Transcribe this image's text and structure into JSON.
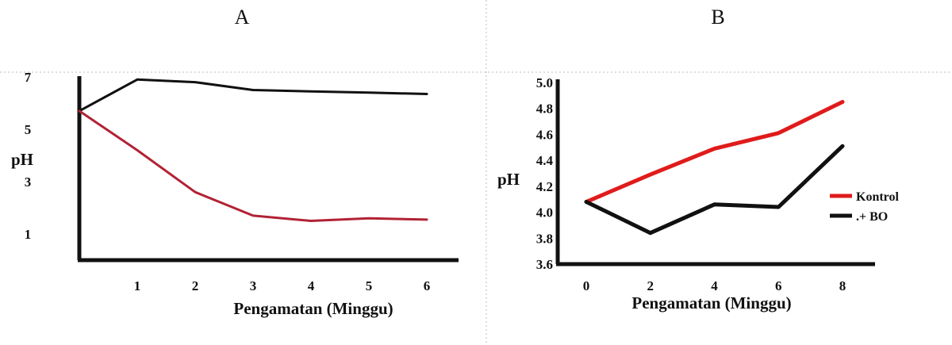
{
  "chart_data": [
    {
      "type": "line",
      "panel_label": "A",
      "title": "",
      "xlabel": "Pengamatan (Minggu)",
      "ylabel": "pH",
      "x_ticks": [
        1,
        2,
        3,
        4,
        5,
        6
      ],
      "y_ticks": [
        1,
        3,
        5,
        7
      ],
      "xlim": [
        0,
        6.5
      ],
      "ylim": [
        0,
        7
      ],
      "grid": false,
      "series": [
        {
          "name": "",
          "color": "#111111",
          "x": [
            0,
            1,
            2,
            3,
            4,
            5,
            6
          ],
          "y": [
            5.7,
            6.9,
            6.8,
            6.5,
            6.45,
            6.4,
            6.35
          ]
        },
        {
          "name": "",
          "color": "#b22234",
          "x": [
            0,
            1,
            2,
            3,
            4,
            5,
            6
          ],
          "y": [
            5.7,
            4.2,
            2.6,
            1.7,
            1.5,
            1.6,
            1.55
          ]
        }
      ]
    },
    {
      "type": "line",
      "panel_label": "B",
      "title": "",
      "xlabel": "Pengamatan (Minggu)",
      "ylabel": "pH",
      "x_ticks": [
        0,
        2,
        4,
        6,
        8
      ],
      "y_ticks": [
        "3.6",
        "3.8",
        "4.0",
        "4.2",
        "4.4",
        "4.6",
        "4.8",
        "5.0"
      ],
      "xlim": [
        -1.5,
        8.8
      ],
      "ylim": [
        3.6,
        5.0
      ],
      "grid": false,
      "legend": "right",
      "series": [
        {
          "name": "Kontrol",
          "color": "#e01b1b",
          "x": [
            0,
            2,
            4,
            6,
            8
          ],
          "y": [
            4.08,
            4.29,
            4.49,
            4.61,
            4.85
          ]
        },
        {
          "name": ".+ BO",
          "color": "#111111",
          "x": [
            0,
            2,
            4,
            6,
            8
          ],
          "y": [
            4.08,
            3.84,
            4.06,
            4.04,
            4.51
          ]
        }
      ]
    }
  ]
}
